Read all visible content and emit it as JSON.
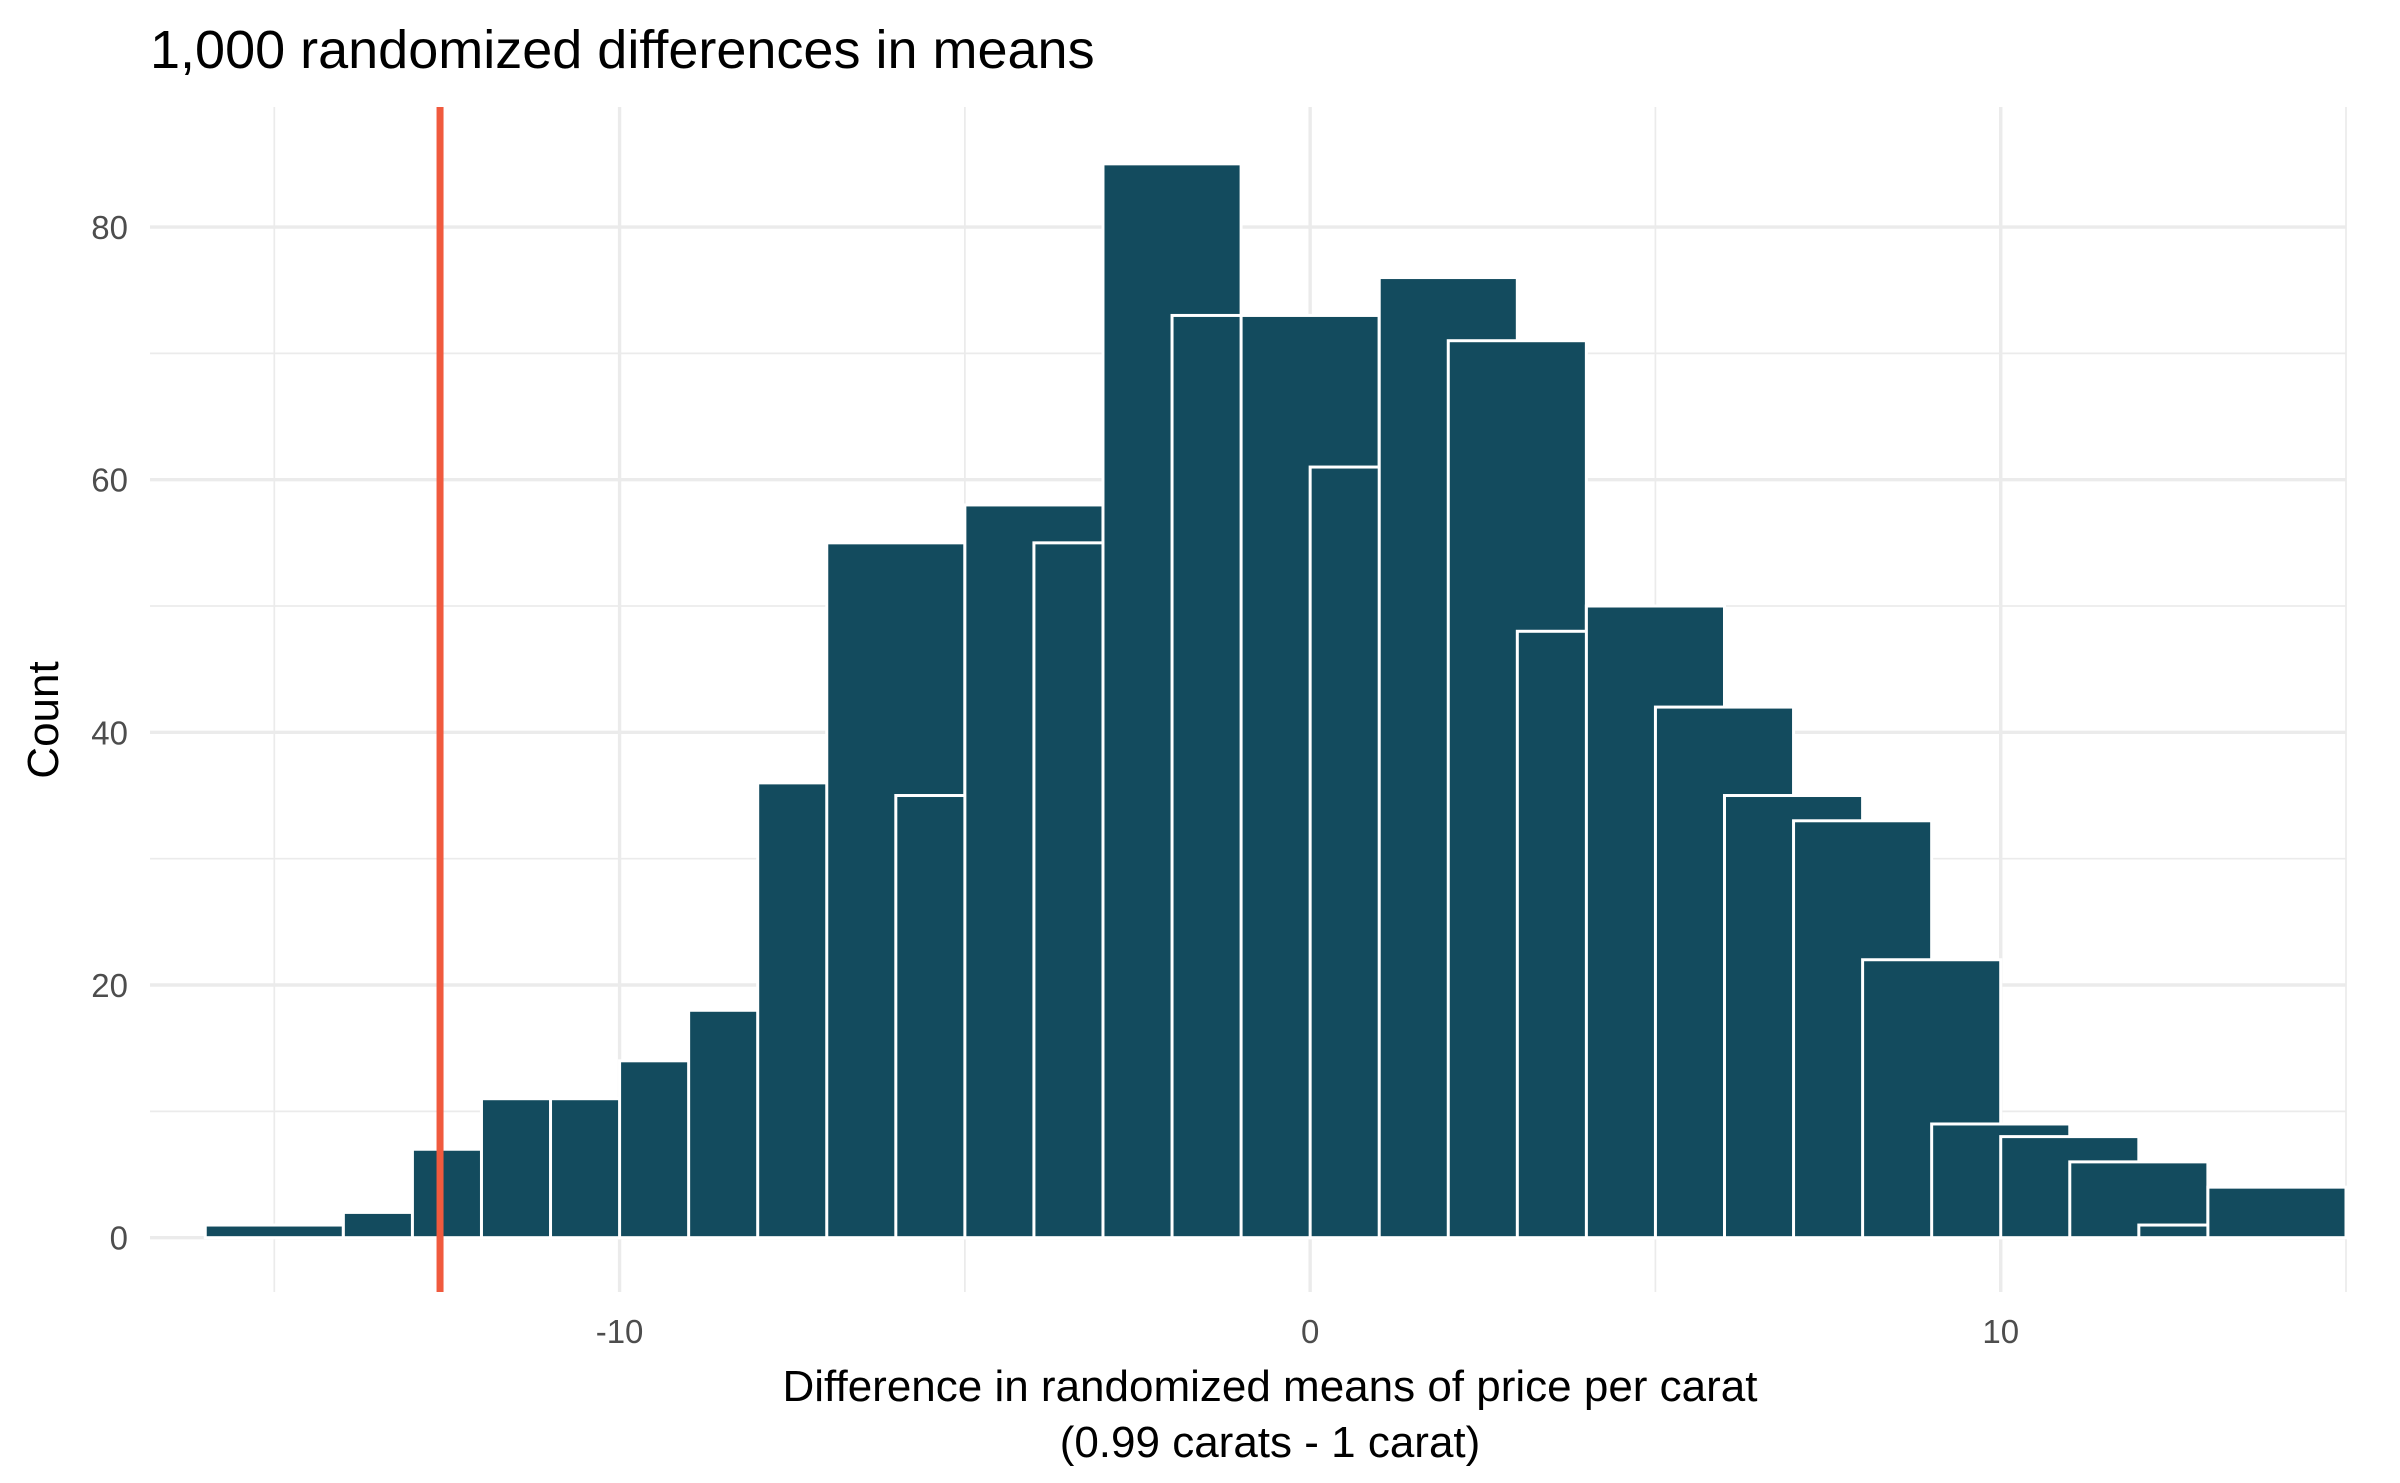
{
  "chart_data": {
    "type": "bar",
    "title": "1,000 randomized differences in means",
    "xlabel_lines": [
      "Difference in randomized means of price per carat",
      "(0.99 carats - 1 carat)"
    ],
    "ylabel": "Count",
    "bin_width": 2,
    "bins_x": [
      -15,
      -14,
      -13,
      -12,
      -11,
      -10,
      -9,
      -8,
      -7,
      -6,
      -5,
      -4,
      -3,
      -2,
      -1,
      0,
      1,
      2,
      3,
      4,
      5,
      6,
      7,
      8,
      9,
      10,
      11,
      12,
      13,
      14
    ],
    "counts": [
      1,
      0,
      2,
      7,
      11,
      11,
      14,
      18,
      36,
      55,
      35,
      58,
      55,
      85,
      73,
      73,
      61,
      76,
      71,
      48,
      50,
      42,
      35,
      33,
      22,
      9,
      8,
      6,
      1,
      4
    ],
    "xlim": [
      -16.8,
      15
    ],
    "ylim": [
      -4.3,
      89.5
    ],
    "x_ticks": [
      -10,
      0,
      10
    ],
    "y_ticks": [
      0,
      20,
      40,
      60,
      80
    ],
    "grid": true,
    "observed_line": {
      "x": -12.6,
      "color": "#f05a3e"
    },
    "bar_color": "#134b5e"
  }
}
